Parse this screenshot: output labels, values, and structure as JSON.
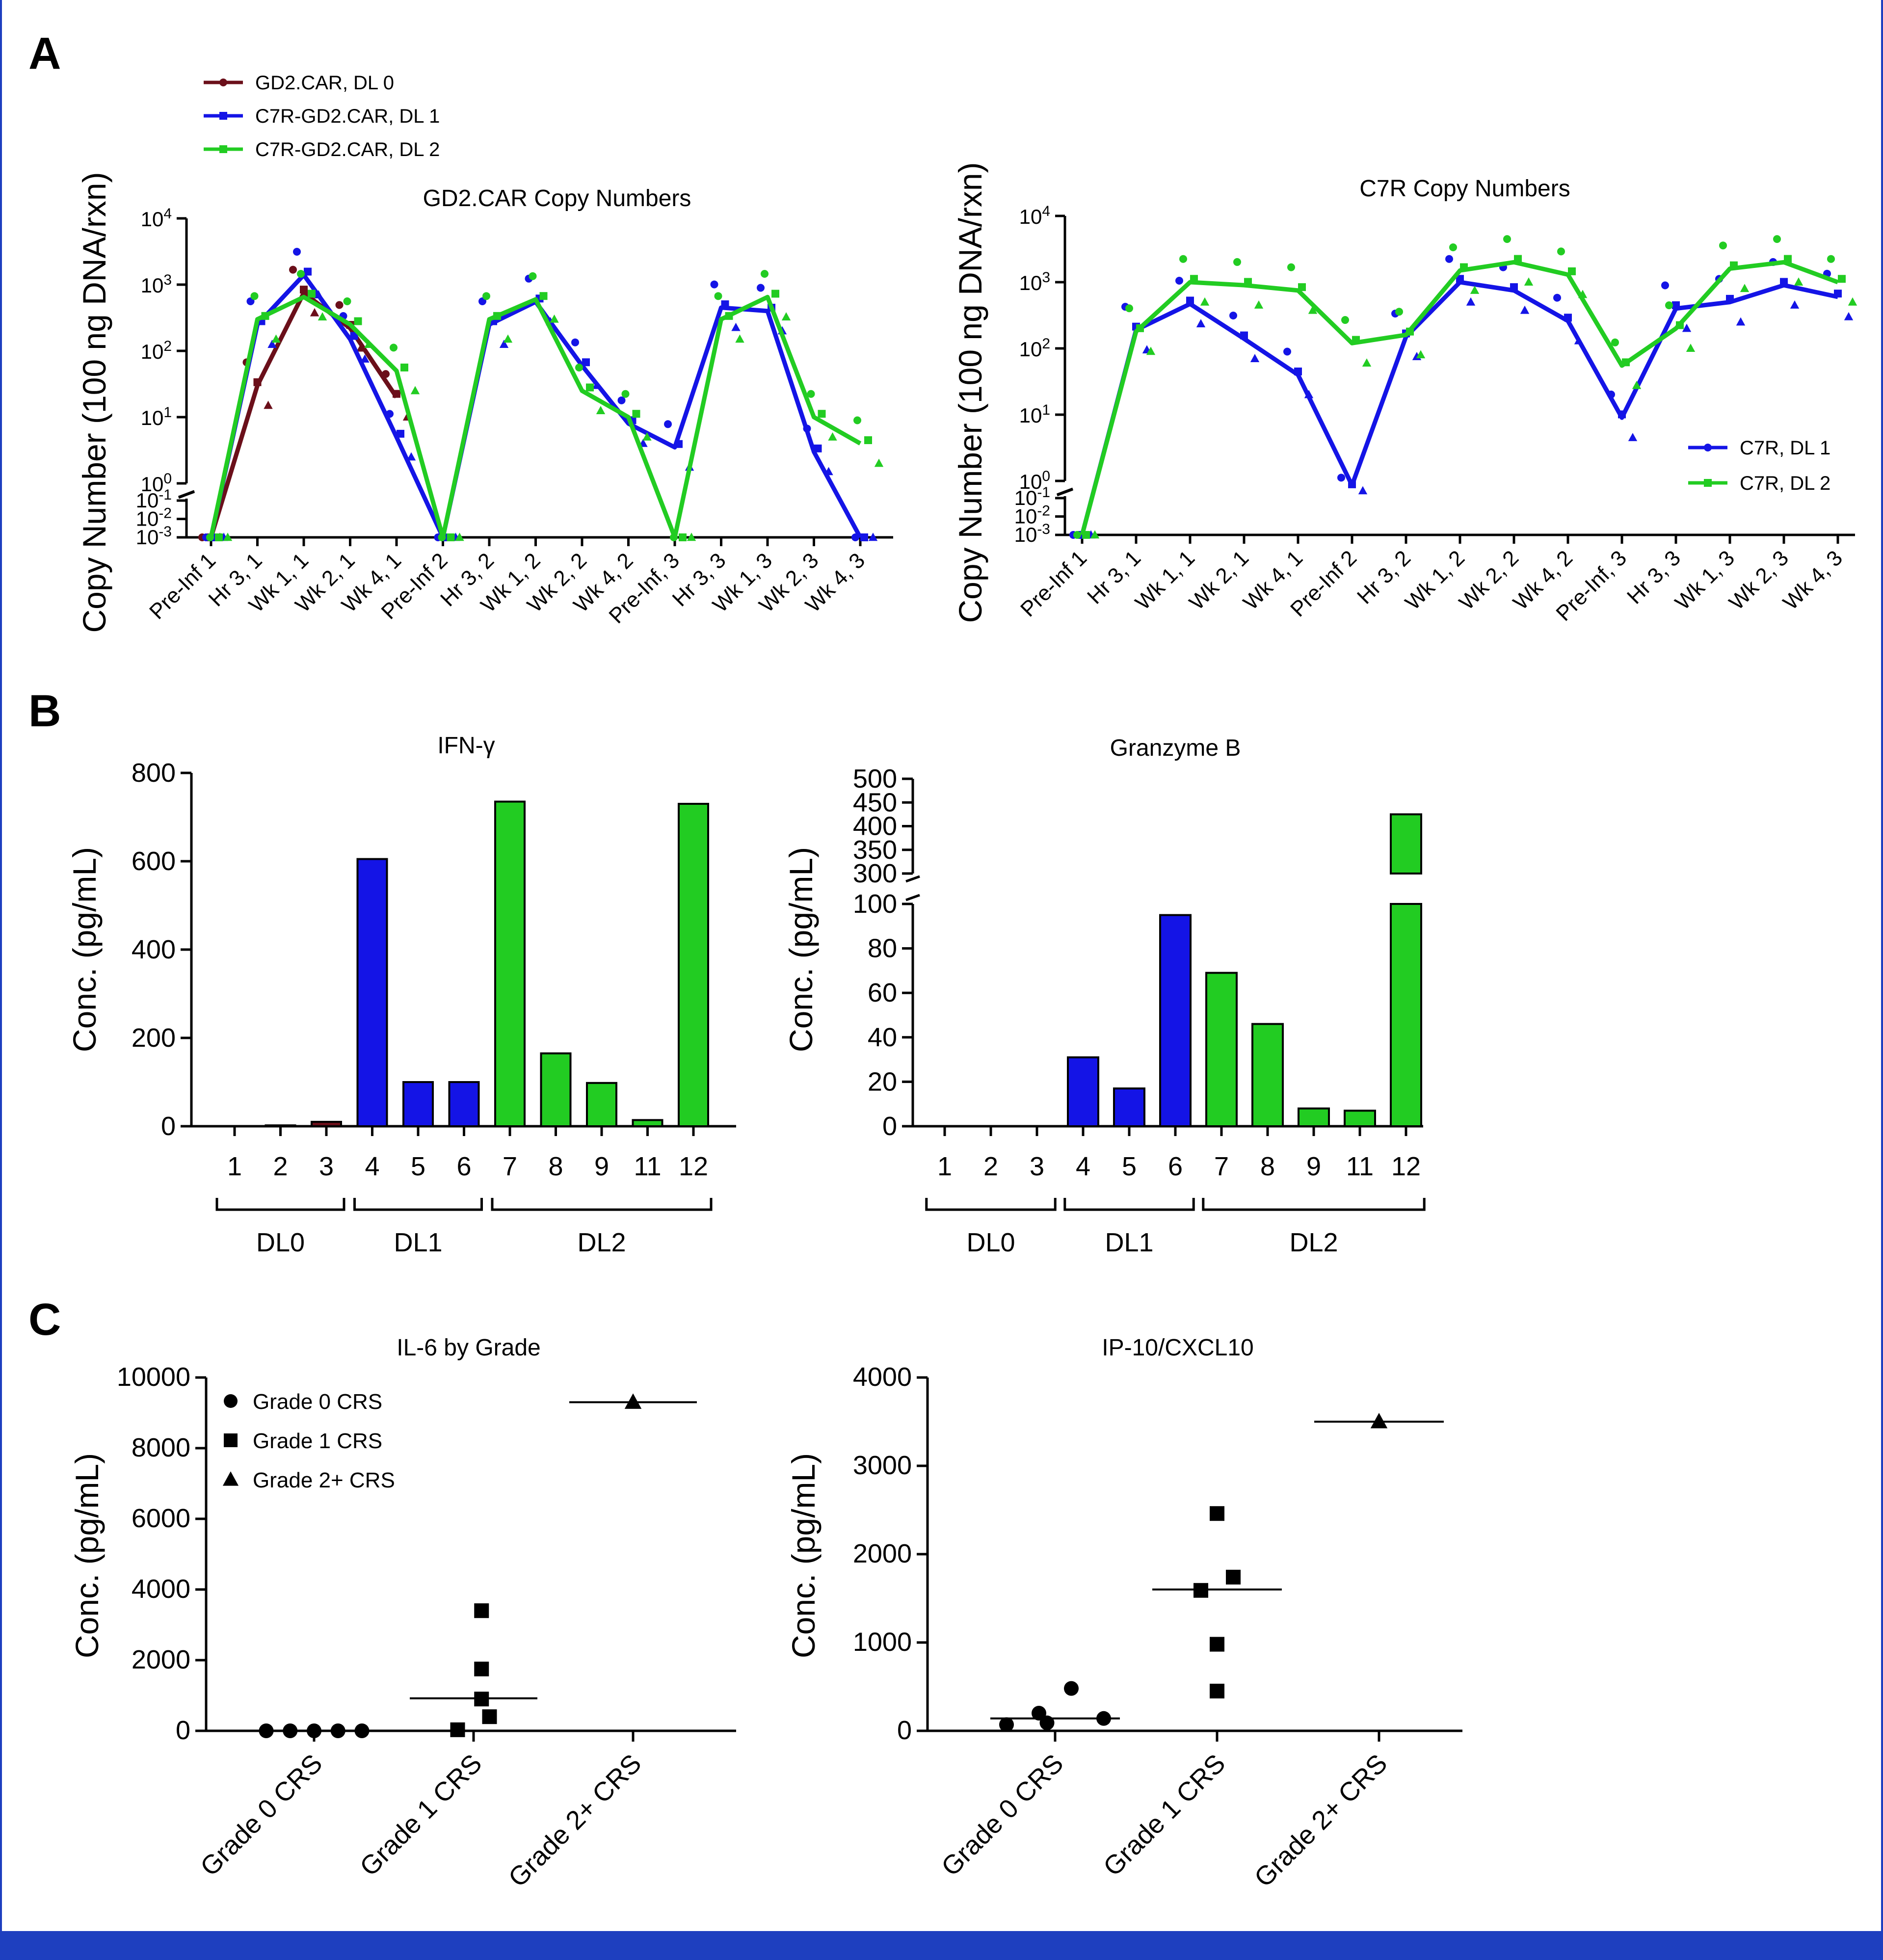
{
  "panels": {
    "a": "A",
    "b": "B",
    "c": "C"
  },
  "colors": {
    "dl0": "#6b0f1a",
    "dl1": "#1414e6",
    "dl2": "#22cc22",
    "band": "#1e3fbf"
  },
  "chart_data": [
    {
      "id": "gd2car",
      "type": "line",
      "title": "GD2.CAR Copy Numbers",
      "ylabel": "Copy Number (100 ng DNA/rxn)",
      "yscale": "log-broken",
      "ytick_labels": [
        "10^4",
        "10^3",
        "10^2",
        "10^1",
        "10^0",
        "10^-1",
        "10^-2",
        "10^-3"
      ],
      "categories": [
        "Pre-Inf 1",
        "Hr 3, 1",
        "Wk 1, 1",
        "Wk 2, 1",
        "Wk 4, 1",
        "Pre-Inf 2",
        "Hr 3, 2",
        "Wk 1, 2",
        "Wk 2, 2",
        "Wk 4, 2",
        "Pre-Inf, 3",
        "Hr 3, 3",
        "Wk 1, 3",
        "Wk 2, 3",
        "Wk 4, 3"
      ],
      "series": [
        {
          "name": "GD2.CAR, DL 0",
          "color": "#6b0f1a",
          "marker": "circle",
          "values": [
            0.001,
            30,
            750,
            220,
            20,
            null,
            null,
            null,
            null,
            null,
            null,
            null,
            null,
            null,
            null
          ]
        },
        {
          "name": "C7R-GD2.CAR, DL 1",
          "color": "#1414e6",
          "marker": "square",
          "values": [
            0.001,
            250,
            1400,
            150,
            5,
            0.001,
            250,
            550,
            60,
            8,
            3.5,
            450,
            400,
            3,
            0.001
          ]
        },
        {
          "name": "C7R-GD2.CAR, DL 2",
          "color": "#22cc22",
          "marker": "square",
          "values": [
            0.001,
            300,
            650,
            250,
            50,
            0.001,
            300,
            600,
            25,
            10,
            0.001,
            300,
            650,
            10,
            4
          ]
        }
      ],
      "legend": "top-left"
    },
    {
      "id": "c7r",
      "type": "line",
      "title": "C7R Copy Numbers",
      "ylabel": "Copy Number (100 ng DNA/rxn)",
      "yscale": "log-broken",
      "ytick_labels": [
        "10^4",
        "10^3",
        "10^2",
        "10^1",
        "10^0",
        "10^-1",
        "10^-2",
        "10^-3"
      ],
      "categories": [
        "Pre-Inf 1",
        "Hr 3, 1",
        "Wk 1, 1",
        "Wk 2, 1",
        "Wk 4, 1",
        "Pre-Inf 2",
        "Hr 3, 2",
        "Wk 1, 2",
        "Wk 2, 2",
        "Wk 4, 2",
        "Pre-Inf, 3",
        "Hr 3, 3",
        "Wk 1, 3",
        "Wk 2, 3",
        "Wk 4, 3"
      ],
      "series": [
        {
          "name": "C7R, DL 1",
          "color": "#1414e6",
          "marker": "circle",
          "values": [
            0.001,
            190,
            470,
            140,
            40,
            0.5,
            150,
            1000,
            750,
            260,
            9,
            400,
            500,
            900,
            600
          ]
        },
        {
          "name": "C7R, DL 2",
          "color": "#22cc22",
          "marker": "square",
          "values": [
            0.001,
            180,
            1000,
            900,
            750,
            120,
            160,
            1500,
            2000,
            1300,
            55,
            200,
            1600,
            2000,
            1000
          ]
        }
      ],
      "legend": "bottom-right"
    },
    {
      "id": "ifng",
      "type": "bar",
      "title": "IFN-γ",
      "ylabel": "Conc. (pg/mL)",
      "ylim": [
        0,
        800
      ],
      "yticks": [
        0,
        200,
        400,
        600,
        800
      ],
      "categories": [
        "1",
        "2",
        "3",
        "4",
        "5",
        "6",
        "7",
        "8",
        "9",
        "11",
        "12"
      ],
      "values": [
        0,
        2,
        10,
        605,
        100,
        100,
        735,
        165,
        98,
        14,
        730
      ],
      "groups": [
        {
          "name": "DL0",
          "members": [
            "1",
            "2",
            "3"
          ]
        },
        {
          "name": "DL1",
          "members": [
            "4",
            "5",
            "6"
          ]
        },
        {
          "name": "DL2",
          "members": [
            "7",
            "8",
            "9",
            "11",
            "12"
          ]
        }
      ]
    },
    {
      "id": "granzyme",
      "type": "bar",
      "title": "Granzyme B",
      "ylabel": "Conc. (pg/mL)",
      "yscale": "broken",
      "ylim_lower": [
        0,
        100
      ],
      "ylim_upper": [
        300,
        500
      ],
      "yticks_lower": [
        0,
        20,
        40,
        60,
        80,
        100
      ],
      "yticks_upper": [
        300,
        350,
        400,
        450,
        500
      ],
      "categories": [
        "1",
        "2",
        "3",
        "4",
        "5",
        "6",
        "7",
        "8",
        "9",
        "11",
        "12"
      ],
      "values": [
        0,
        0,
        0,
        31,
        17,
        95,
        69,
        46,
        8,
        7,
        425
      ],
      "groups": [
        {
          "name": "DL0",
          "members": [
            "1",
            "2",
            "3"
          ]
        },
        {
          "name": "DL1",
          "members": [
            "4",
            "5",
            "6"
          ]
        },
        {
          "name": "DL2",
          "members": [
            "7",
            "8",
            "9",
            "11",
            "12"
          ]
        }
      ]
    },
    {
      "id": "il6",
      "type": "scatter",
      "title": "IL-6 by Grade",
      "ylabel": "Conc. (pg/mL)",
      "ylim": [
        0,
        10000
      ],
      "yticks": [
        0,
        2000,
        4000,
        6000,
        8000,
        10000
      ],
      "categories": [
        "Grade 0 CRS",
        "Grade 1 CRS",
        "Grade 2+ CRS"
      ],
      "series": [
        {
          "name": "Grade 0 CRS",
          "marker": "circle",
          "points": [
            [
              -0.3,
              0
            ],
            [
              -0.15,
              0
            ],
            [
              0,
              0
            ],
            [
              0.15,
              0
            ],
            [
              0.3,
              0
            ]
          ],
          "median": 0
        },
        {
          "name": "Grade 1 CRS",
          "marker": "square",
          "points": [
            [
              0.05,
              3400
            ],
            [
              0.05,
              1750
            ],
            [
              0.05,
              900
            ],
            [
              0.1,
              400
            ],
            [
              -0.1,
              30
            ]
          ],
          "median": 920
        },
        {
          "name": "Grade 2+ CRS",
          "marker": "triangle",
          "points": [
            [
              0,
              9300
            ]
          ],
          "median": 9300
        }
      ],
      "legend_labels": [
        "Grade 0 CRS",
        "Grade 1 CRS",
        "Grade 2+ CRS"
      ],
      "legend": "top-left"
    },
    {
      "id": "ip10",
      "type": "scatter",
      "title": "IP-10/CXCL10",
      "ylabel": "Conc. (pg/mL)",
      "ylim": [
        0,
        4000
      ],
      "yticks": [
        0,
        1000,
        2000,
        3000,
        4000
      ],
      "categories": [
        "Grade 0 CRS",
        "Grade 1 CRS",
        "Grade 2+ CRS"
      ],
      "series": [
        {
          "name": "Grade 0 CRS",
          "marker": "circle",
          "points": [
            [
              -0.3,
              70
            ],
            [
              -0.1,
              200
            ],
            [
              0.1,
              480
            ],
            [
              -0.05,
              90
            ],
            [
              0.3,
              140
            ]
          ],
          "median": 140
        },
        {
          "name": "Grade 1 CRS",
          "marker": "square",
          "points": [
            [
              0,
              2460
            ],
            [
              0.1,
              1740
            ],
            [
              -0.1,
              1590
            ],
            [
              0,
              980
            ],
            [
              0,
              450
            ]
          ],
          "median": 1600
        },
        {
          "name": "Grade 2+ CRS",
          "marker": "triangle",
          "points": [
            [
              0,
              3500
            ]
          ],
          "median": 3500
        }
      ]
    }
  ]
}
